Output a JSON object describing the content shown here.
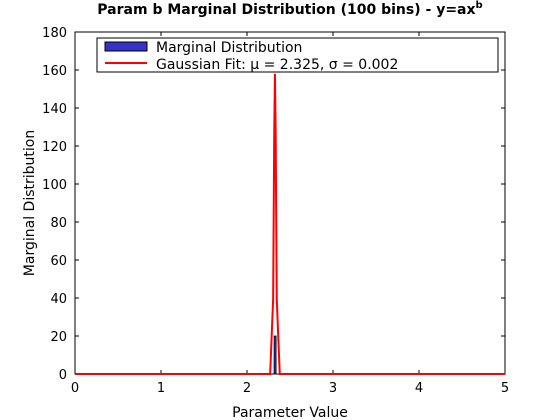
{
  "chart_data": {
    "type": "bar",
    "title": "Param b Marginal Distribution (100 bins) - y=ax",
    "title_superscript": "b",
    "xlabel": "Parameter Value",
    "ylabel": "Marginal Distribution",
    "xlim": [
      0,
      5
    ],
    "ylim": [
      0,
      180
    ],
    "xticks": [
      "0",
      "1",
      "2",
      "3",
      "4",
      "5"
    ],
    "yticks": [
      "0",
      "20",
      "40",
      "60",
      "80",
      "100",
      "120",
      "140",
      "160",
      "180"
    ],
    "grid": false,
    "legend_position": "top",
    "series": [
      {
        "name": "Marginal Distribution",
        "kind": "histogram",
        "color": "#3333cc",
        "bins": [
          {
            "x0": 2.315,
            "x1": 2.335,
            "y": 20
          }
        ]
      },
      {
        "name": "Gaussian Fit: μ = 2.325, σ  = 0.002",
        "kind": "line",
        "color": "#ff0000",
        "mu": 2.325,
        "peak": 158
      }
    ]
  }
}
